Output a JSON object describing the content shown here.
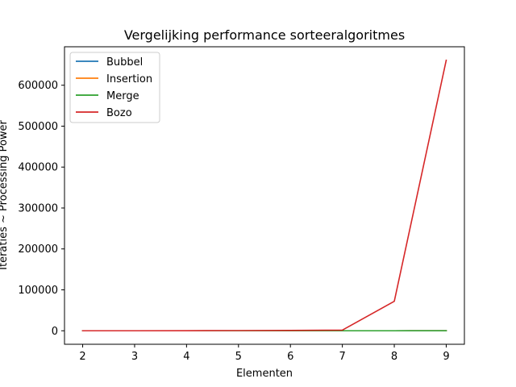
{
  "chart_data": {
    "type": "line",
    "title": "Vergelijking performance sorteeralgoritmes",
    "xlabel": "Elementen",
    "ylabel": "Iteraties ~ Processing Power",
    "x": [
      2,
      3,
      4,
      5,
      6,
      7,
      8,
      9
    ],
    "xlim": [
      1.65,
      9.35
    ],
    "ylim": [
      -33000,
      694000
    ],
    "xticks": [
      "2",
      "3",
      "4",
      "5",
      "6",
      "7",
      "8",
      "9"
    ],
    "yticks": [
      0,
      100000,
      200000,
      300000,
      400000,
      500000,
      600000
    ],
    "yticklabels": [
      "0",
      "100000",
      "200000",
      "300000",
      "400000",
      "500000",
      "600000"
    ],
    "grid": false,
    "legend_position": "top-left",
    "series": [
      {
        "name": "Bubbel",
        "color": "#1f77b4",
        "values": [
          1,
          3,
          6,
          10,
          15,
          21,
          28,
          36
        ]
      },
      {
        "name": "Insertion",
        "color": "#ff7f0e",
        "values": [
          1,
          3,
          6,
          10,
          15,
          21,
          28,
          36
        ]
      },
      {
        "name": "Merge",
        "color": "#2ca02c",
        "values": [
          2,
          5,
          8,
          12,
          16,
          20,
          24,
          29
        ]
      },
      {
        "name": "Bozo",
        "color": "#d62728",
        "values": [
          2,
          20,
          150,
          500,
          900,
          1600,
          72000,
          661000
        ]
      }
    ]
  }
}
